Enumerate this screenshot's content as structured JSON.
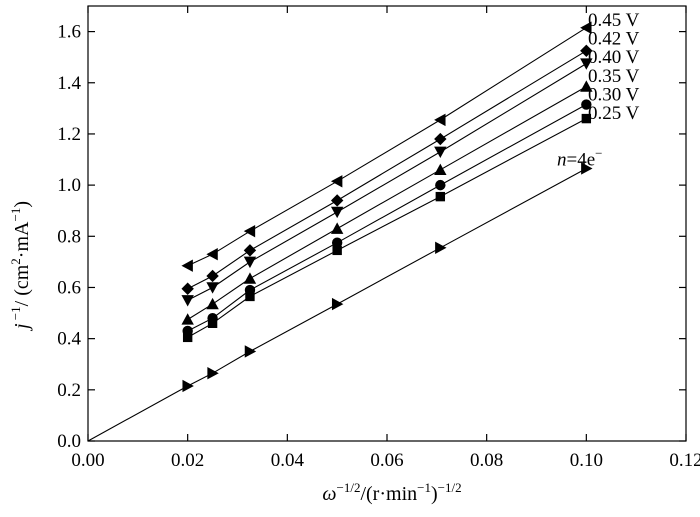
{
  "chart_data": {
    "type": "scatter",
    "xlabel_parts": {
      "main": "ω",
      "exp1": "−1/2",
      "mid": "/(r·min",
      "exp2": "−1",
      "tail": ")",
      "exp3": "−1/2"
    },
    "ylabel_parts": {
      "main": "j",
      "exp1": " −1",
      "mid": "/ (cm",
      "exp2": "2",
      "mid2": "·mA",
      "exp3": "−1",
      "tail": ")"
    },
    "xlim": [
      0.0,
      0.12
    ],
    "ylim": [
      0.0,
      1.7
    ],
    "xticks": [
      "0.00",
      "0.02",
      "0.04",
      "0.06",
      "0.08",
      "0.10",
      "0.12"
    ],
    "yticks": [
      "0.0",
      "0.2",
      "0.4",
      "0.6",
      "0.8",
      "1.0",
      "1.2",
      "1.4",
      "1.6"
    ],
    "x": [
      0.02,
      0.025,
      0.0325,
      0.05,
      0.0707,
      0.1
    ],
    "series": [
      {
        "name": "0.45 V",
        "marker": "triangle-left",
        "values": [
          0.685,
          0.73,
          0.82,
          1.015,
          1.255,
          1.615
        ]
      },
      {
        "name": "0.42 V",
        "marker": "diamond",
        "values": [
          0.595,
          0.645,
          0.745,
          0.94,
          1.18,
          1.525
        ]
      },
      {
        "name": "0.40 V",
        "marker": "triangle-down",
        "values": [
          0.55,
          0.6,
          0.7,
          0.895,
          1.13,
          1.475
        ]
      },
      {
        "name": "0.35 V",
        "marker": "triangle-up",
        "values": [
          0.475,
          0.535,
          0.635,
          0.83,
          1.06,
          1.385
        ]
      },
      {
        "name": "0.30 V",
        "marker": "circle",
        "values": [
          0.43,
          0.48,
          0.59,
          0.775,
          1.0,
          1.315
        ]
      },
      {
        "name": "0.25 V",
        "marker": "square",
        "values": [
          0.405,
          0.46,
          0.565,
          0.745,
          0.955,
          1.26
        ]
      },
      {
        "name": "n=4e",
        "marker": "triangle-right",
        "values": [
          0.215,
          0.265,
          0.35,
          0.535,
          0.755,
          1.065
        ],
        "line_from_origin": true
      }
    ],
    "grid": false,
    "colors": {
      "marks": "#000000",
      "background": "#ffffff"
    }
  }
}
